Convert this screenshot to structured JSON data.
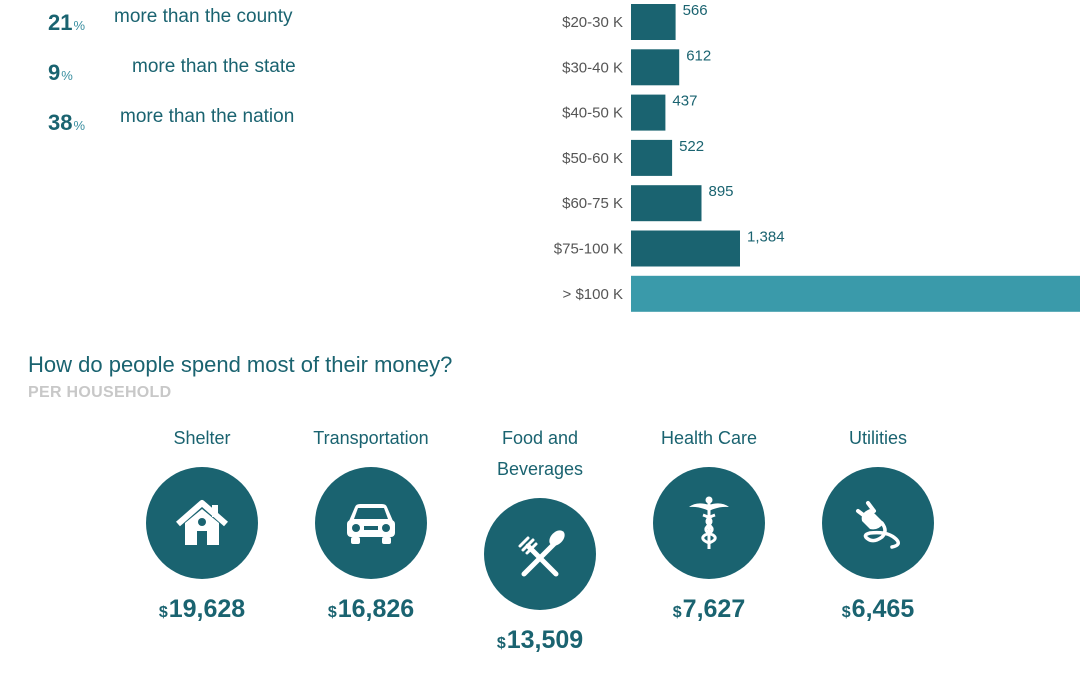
{
  "comparisons": [
    {
      "value": "21",
      "unit": "%",
      "label": "more than the county"
    },
    {
      "value": "9",
      "unit": "%",
      "label": "more than the state"
    },
    {
      "value": "38",
      "unit": "%",
      "label": "more than the nation"
    }
  ],
  "chart_data": {
    "type": "bar",
    "orientation": "horizontal",
    "categories": [
      "$20-30 K",
      "$30-40 K",
      "$40-50 K",
      "$50-60 K",
      "$60-75 K",
      "$75-100 K",
      "> $100 K"
    ],
    "values": [
      566,
      612,
      437,
      522,
      895,
      1384,
      null
    ],
    "value_labels": [
      "566",
      "612",
      "437",
      "522",
      "895",
      "1,384",
      ""
    ],
    "truncated_category": "> $100 K",
    "colors": {
      "bar": "#1a6370",
      "highlight": "#3a9aaa"
    },
    "xlim": [
      0,
      1384
    ]
  },
  "spending": {
    "title": "How do people spend most of their money?",
    "subtitle": "PER HOUSEHOLD",
    "currency": "$",
    "items": [
      {
        "label": "Shelter",
        "amount": "19,628",
        "icon": "house-icon"
      },
      {
        "label": "Transportation",
        "amount": "16,826",
        "icon": "car-icon"
      },
      {
        "label": "Food and Beverages",
        "amount": "13,509",
        "icon": "fork-spoon-icon"
      },
      {
        "label": "Health Care",
        "amount": "7,627",
        "icon": "caduceus-icon"
      },
      {
        "label": "Utilities",
        "amount": "6,465",
        "icon": "plug-icon"
      }
    ]
  }
}
